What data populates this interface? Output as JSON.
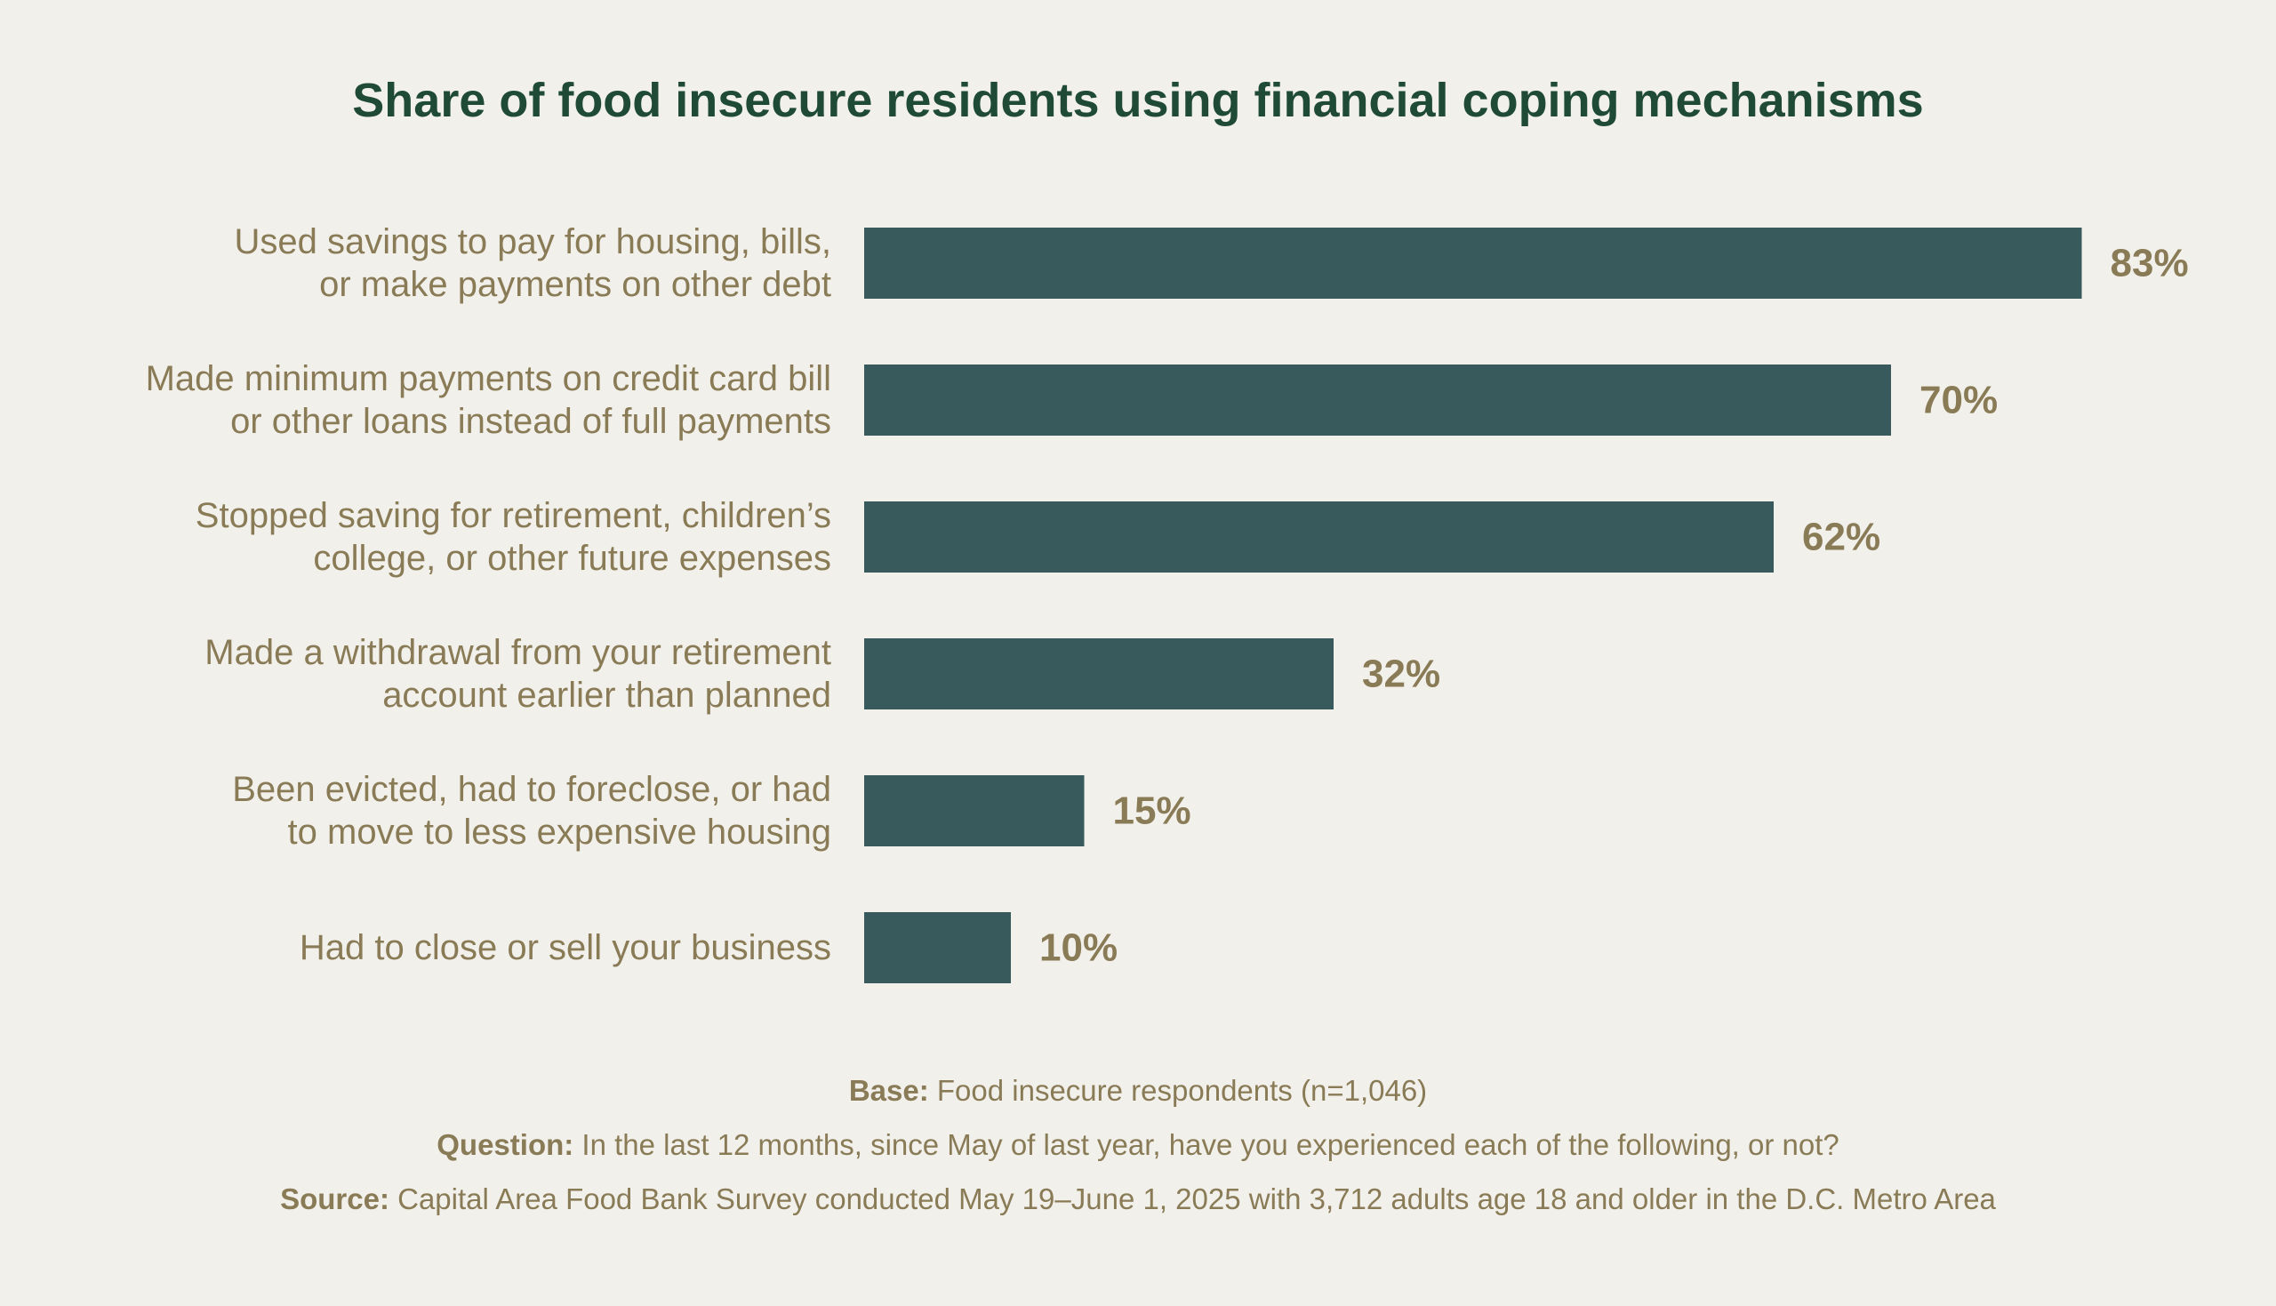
{
  "chart_data": {
    "type": "bar",
    "orientation": "horizontal",
    "title": "Share of food insecure residents using financial coping mechanisms",
    "categories": [
      [
        "Used savings to pay for housing, bills,",
        "or make payments on other debt"
      ],
      [
        "Made minimum payments on credit card bill",
        "or other loans instead of full payments"
      ],
      [
        "Stopped saving for retirement, children’s",
        "college, or other future expenses"
      ],
      [
        "Made a withdrawal from your retirement",
        "account earlier than planned"
      ],
      [
        "Been evicted, had to foreclose, or had",
        "to move to less expensive housing"
      ],
      [
        "Had to close or sell your business"
      ]
    ],
    "values": [
      83,
      70,
      62,
      32,
      15,
      10
    ],
    "value_labels": [
      "83%",
      "70%",
      "62%",
      "32%",
      "15%",
      "10%"
    ],
    "unit": "%",
    "xlim": [
      0,
      100
    ],
    "grid": false,
    "legend": false,
    "bar_color": "#385a5d"
  },
  "footnotes": {
    "base_label": "Base:",
    "base_text": " Food insecure respondents (n=1,046)",
    "question_label": "Question:",
    "question_text": " In the last 12 months, since May of last year, have you experienced each of the following, or not?",
    "source_label": "Source:",
    "source_text": " Capital Area Food Bank Survey conducted May 19–June 1, 2025 with 3,712 adults age 18 and older in the D.C. Metro Area"
  },
  "colors": {
    "background": "#f2f0eb",
    "title": "#1f4a36",
    "label": "#8a7b57",
    "bar": "#385a5d"
  }
}
